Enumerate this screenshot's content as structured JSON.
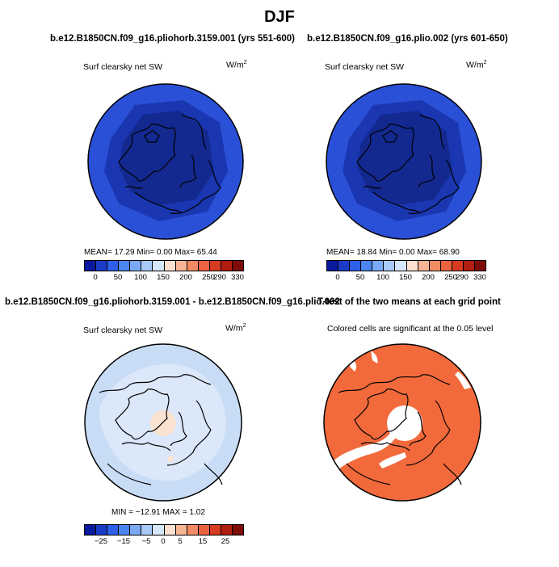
{
  "figure": {
    "title": "DJF"
  },
  "panels": {
    "top_left": {
      "title": "b.e12.B1850CN.f09_g16.pliohorb.3159.001 (yrs 551-600)",
      "variable": "Surf clearsky net SW",
      "units_base": "W/m",
      "units_exp": "2",
      "stats": "MEAN=  17.29  Min=    0.00  Max=  65.44",
      "colorbar_ticks": [
        "0",
        "50",
        "100",
        "150",
        "200",
        "250",
        "290",
        "330"
      ]
    },
    "top_right": {
      "title": "b.e12.B1850CN.f09_g16.plio.002 (yrs 601-650)",
      "variable": "Surf clearsky net SW",
      "units_base": "W/m",
      "units_exp": "2",
      "stats": "MEAN=  18.84  Min=    0.00  Max=  68.90",
      "colorbar_ticks": [
        "0",
        "50",
        "100",
        "150",
        "200",
        "250",
        "290",
        "330"
      ]
    },
    "bottom_left": {
      "title": "b.e12.B1850CN.f09_g16.pliohorb.3159.001 - b.e12.B1850CN.f09_g16.plio.002",
      "variable": "Surf clearsky net SW",
      "units_base": "W/m",
      "units_exp": "2",
      "stats": "MIN = −12.91  MAX =    1.02",
      "colorbar_ticks": [
        "−25",
        "−15",
        "−5",
        "0",
        "5",
        "15",
        "25"
      ]
    },
    "bottom_right": {
      "title": "T-test of the two means at each grid point",
      "caption": "Colored cells are significant at the 0.05 level"
    }
  },
  "colors": {
    "abs_scale": [
      "#0a1a9c",
      "#1c3cc8",
      "#2e5fe8",
      "#4a85f0",
      "#7aaaf5",
      "#a9c9f8",
      "#d6e6fb",
      "#fde0cf",
      "#f8b596",
      "#f28b64",
      "#ea6240",
      "#d63b22",
      "#b21d12",
      "#7d0c08"
    ],
    "diff_scale": [
      "#0a1a9c",
      "#1c3cc8",
      "#2e5fe8",
      "#4a85f0",
      "#7aaaf5",
      "#a9c9f8",
      "#d6e6fb",
      "#fde0cf",
      "#f8b596",
      "#f28b64",
      "#ea6240",
      "#d63b22",
      "#b21d12",
      "#7d0c08"
    ],
    "map_outer": "#2a50d8",
    "map_inner": "#1a36b0",
    "map_core": "#13298f",
    "diff_base": "#c9dcf6",
    "diff_light": "#dbe8fa",
    "diff_peach": "#fbe3d2",
    "ttest": "#f26a3c"
  }
}
